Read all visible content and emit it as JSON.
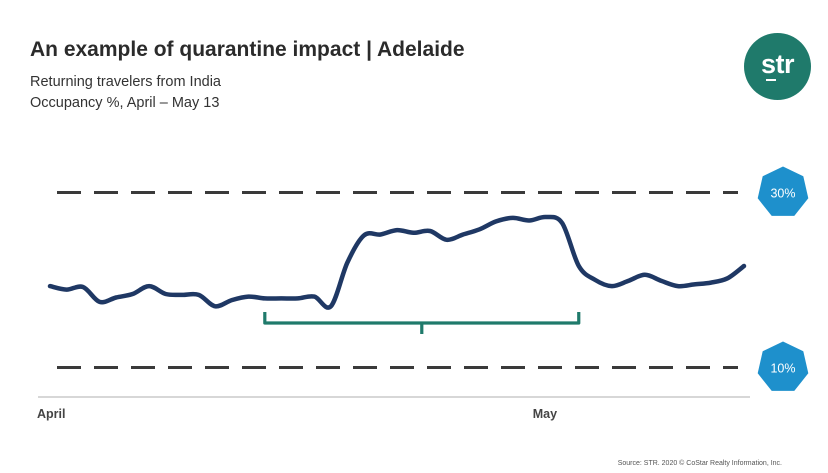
{
  "header": {
    "title": "An example of quarantine impact | Adelaide",
    "subtitle": "Returning travelers from India",
    "subtitle2": "Occupancy %, April – May 13"
  },
  "logo": {
    "text": "str",
    "color": "#1f7a6b"
  },
  "source": "Source: STR. 2020 © CoStar Realty Information, Inc.",
  "chart_data": {
    "type": "line",
    "title": "An example of quarantine impact | Adelaide",
    "xlabel": "",
    "ylabel": "",
    "x_tick_labels": [
      {
        "label": "April",
        "day": 1
      },
      {
        "label": "May",
        "day": 31
      }
    ],
    "ylim": [
      0,
      40
    ],
    "grid": false,
    "reference_lines": [
      {
        "label": "30%",
        "value": 30
      },
      {
        "label": "10%",
        "value": 10
      }
    ],
    "bracket": {
      "start_day": 14,
      "end_day": 33
    },
    "series": [
      {
        "color": "#1f3864",
        "x": [
          1,
          2,
          3,
          4,
          5,
          6,
          7,
          8,
          9,
          10,
          11,
          12,
          13,
          14,
          15,
          16,
          17,
          18,
          19,
          20,
          21,
          22,
          23,
          24,
          25,
          26,
          27,
          28,
          29,
          30,
          31,
          32,
          33,
          34,
          35,
          36,
          37,
          38,
          39,
          40,
          41,
          42,
          43
        ],
        "values": [
          19.3,
          18.9,
          19.2,
          17.5,
          18.0,
          18.4,
          19.3,
          18.4,
          18.3,
          18.3,
          17.0,
          17.7,
          18.1,
          17.9,
          17.9,
          17.9,
          18.1,
          17.0,
          22.0,
          25.1,
          25.2,
          25.7,
          25.4,
          25.6,
          24.6,
          25.2,
          25.8,
          26.7,
          27.1,
          26.8,
          27.2,
          26.5,
          21.6,
          20.0,
          19.3,
          19.9,
          20.6,
          19.9,
          19.3,
          19.5,
          19.7,
          20.2,
          21.6
        ]
      }
    ]
  },
  "colors": {
    "line": "#1f3864",
    "reference_line": "#3a3a3a",
    "badge": "#1e90cc",
    "bracket": "#1f7a6b",
    "axis": "#bfbfbf"
  }
}
